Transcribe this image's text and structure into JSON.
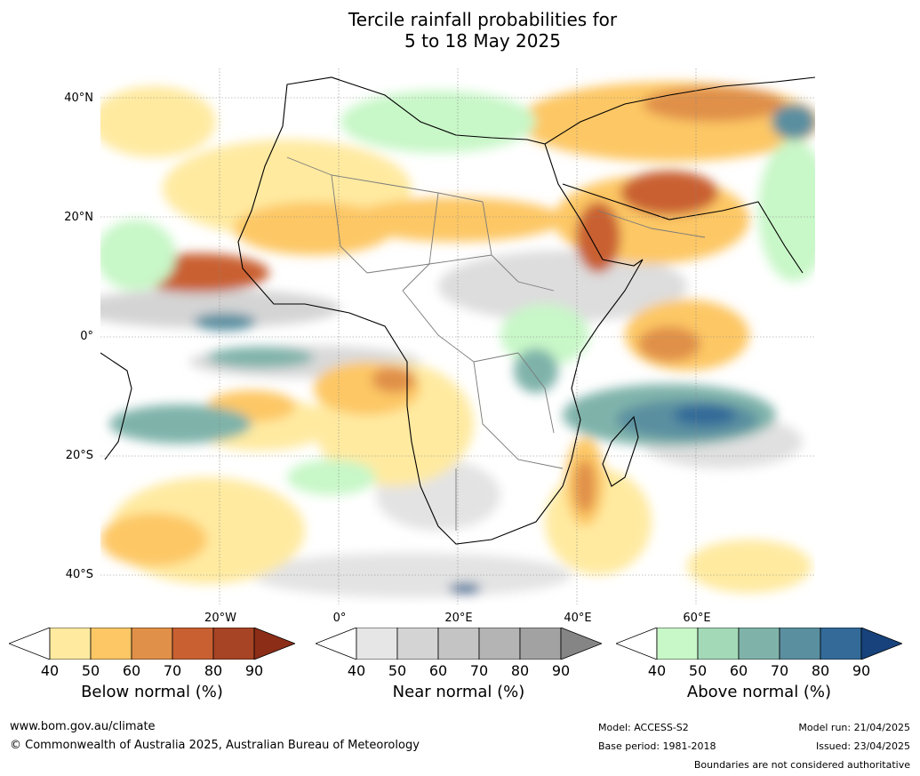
{
  "title": {
    "line1": "Tercile rainfall probabilities for",
    "line2": "5 to 18 May 2025"
  },
  "map": {
    "region": "Africa",
    "lat_labels": [
      "40°N",
      "20°N",
      "0°",
      "20°S",
      "40°S"
    ],
    "lon_labels": [
      "20°W",
      "0°",
      "20°E",
      "40°E",
      "60°E"
    ]
  },
  "colorbars": [
    {
      "name": "below",
      "title": "Below normal (%)",
      "ticks": [
        "40",
        "50",
        "60",
        "70",
        "80",
        "90"
      ],
      "colors": [
        "#ffffff",
        "#ffeaa0",
        "#fdc765",
        "#e09048",
        "#c96032",
        "#a64425",
        "#8c2d18"
      ]
    },
    {
      "name": "near",
      "title": "Near normal (%)",
      "ticks": [
        "40",
        "50",
        "60",
        "70",
        "80",
        "90"
      ],
      "colors": [
        "#ffffff",
        "#e6e6e6",
        "#d4d4d4",
        "#c4c4c4",
        "#b4b4b4",
        "#a2a2a2",
        "#858585"
      ]
    },
    {
      "name": "above",
      "title": "Above normal (%)",
      "ticks": [
        "40",
        "50",
        "60",
        "70",
        "80",
        "90"
      ],
      "colors": [
        "#ffffff",
        "#c8f7c8",
        "#a4d9b8",
        "#7fb3aa",
        "#5a8fa0",
        "#336a98",
        "#17427c"
      ]
    }
  ],
  "footer": {
    "website": "www.bom.gov.au/climate",
    "copyright": "© Commonwealth of Australia 2025, Australian Bureau of Meteorology",
    "model": "Model: ACCESS-S2",
    "base_period": "Base period: 1981-2018",
    "model_run": "Model run: 21/04/2025",
    "issued": "Issued: 23/04/2025",
    "disclaimer": "Boundaries are not considered authoritative"
  }
}
